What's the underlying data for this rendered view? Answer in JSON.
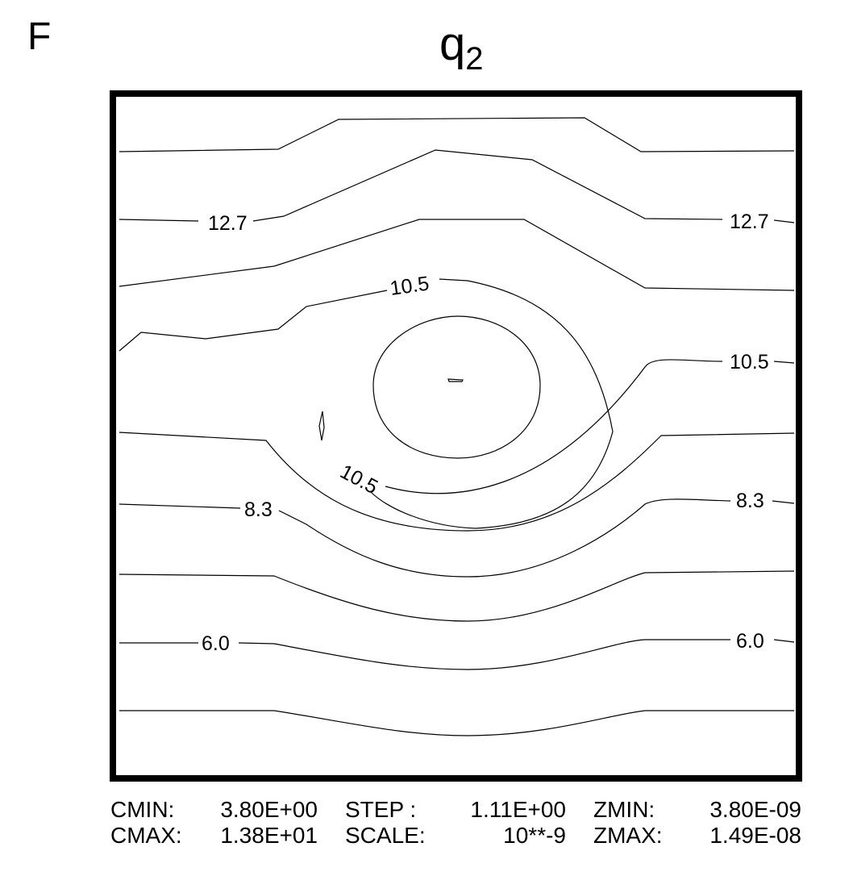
{
  "panel_label": "F",
  "title": {
    "base": "q",
    "subscript": "2"
  },
  "chart_data": {
    "type": "contour",
    "variable": "q2",
    "contour_levels_labeled": [
      "12.7",
      "10.5",
      "8.3",
      "6.0"
    ],
    "labels": [
      {
        "level": "12.7",
        "side": "left"
      },
      {
        "level": "12.7",
        "side": "right"
      },
      {
        "level": "10.5",
        "side": "upper-center"
      },
      {
        "level": "10.5",
        "side": "right"
      },
      {
        "level": "10.5",
        "side": "lower-left"
      },
      {
        "level": "8.3",
        "side": "left"
      },
      {
        "level": "8.3",
        "side": "right"
      },
      {
        "level": "6.0",
        "side": "left"
      },
      {
        "level": "6.0",
        "side": "right"
      }
    ],
    "cmin": "3.80E+00",
    "cmax": "1.38E+01",
    "step": "1.11E+00",
    "scale": "10**-9",
    "zmin": "3.80E-09",
    "zmax": "1.49E-08",
    "grid": false,
    "axes_ticks": false
  },
  "footer": {
    "cmin_label": "CMIN:",
    "cmin_value": "3.80E+00",
    "cmax_label": "CMAX:",
    "cmax_value": "1.38E+01",
    "step_label": "STEP :",
    "step_value": "1.11E+00",
    "scale_label": "SCALE:",
    "scale_value": "10**-9",
    "zmin_label": "ZMIN:",
    "zmin_value": "3.80E-09",
    "zmax_label": "ZMAX:",
    "zmax_value": "1.49E-08"
  }
}
